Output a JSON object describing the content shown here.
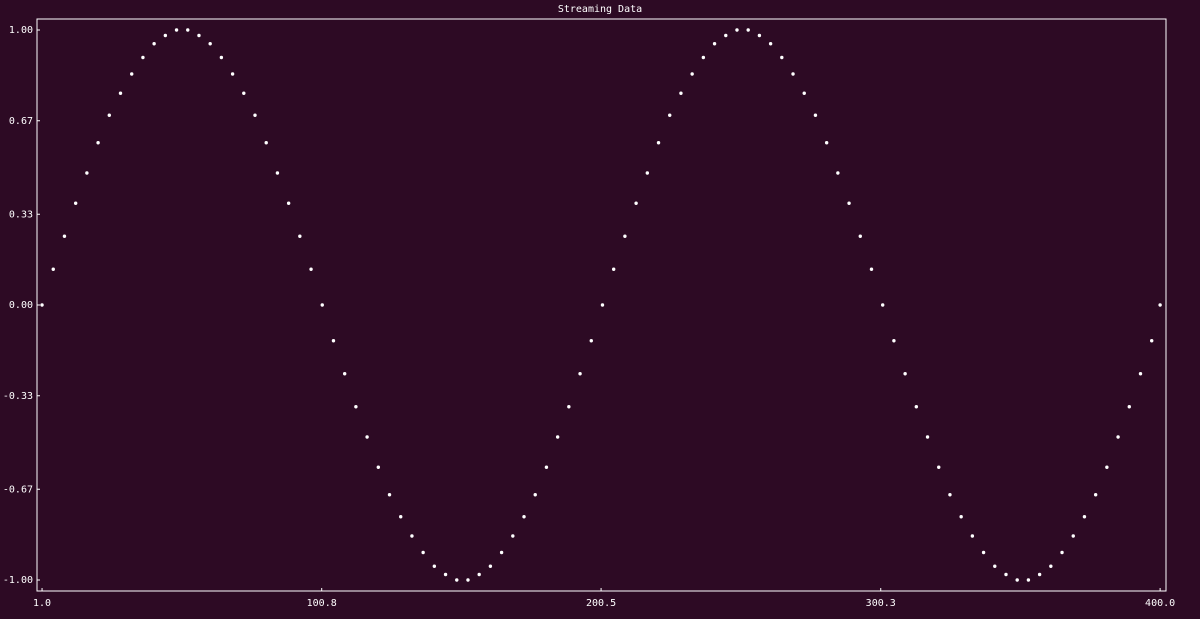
{
  "chart_data": {
    "type": "scatter",
    "title": "Streaming Data",
    "x": [
      1,
      5,
      9,
      13,
      17,
      21,
      25,
      29,
      33,
      37,
      41,
      45,
      49,
      53,
      57,
      61,
      65,
      69,
      73,
      77,
      81,
      85,
      89,
      93,
      97,
      101,
      105,
      109,
      113,
      117,
      121,
      125,
      129,
      133,
      137,
      141,
      145,
      149,
      153,
      157,
      161,
      165,
      169,
      173,
      177,
      181,
      185,
      189,
      193,
      197,
      201,
      205,
      209,
      213,
      217,
      221,
      225,
      229,
      233,
      237,
      241,
      245,
      249,
      253,
      257,
      261,
      265,
      269,
      273,
      277,
      281,
      285,
      289,
      293,
      297,
      301,
      305,
      309,
      313,
      317,
      321,
      325,
      329,
      333,
      337,
      341,
      345,
      349,
      353,
      357,
      361,
      365,
      369,
      373,
      377,
      381,
      385,
      389,
      393,
      397,
      400
    ],
    "values": [
      0,
      0.13,
      0.25,
      0.37,
      0.48,
      0.59,
      0.69,
      0.77,
      0.84,
      0.9,
      0.95,
      0.98,
      1,
      1,
      0.98,
      0.95,
      0.9,
      0.84,
      0.77,
      0.69,
      0.59,
      0.48,
      0.37,
      0.25,
      0.13,
      0,
      -0.13,
      -0.25,
      -0.37,
      -0.48,
      -0.59,
      -0.69,
      -0.77,
      -0.84,
      -0.9,
      -0.95,
      -0.98,
      -1,
      -1,
      -0.98,
      -0.95,
      -0.9,
      -0.84,
      -0.77,
      -0.69,
      -0.59,
      -0.48,
      -0.37,
      -0.25,
      -0.13,
      0,
      0.13,
      0.25,
      0.37,
      0.48,
      0.59,
      0.69,
      0.77,
      0.84,
      0.9,
      0.95,
      0.98,
      1,
      1,
      0.98,
      0.95,
      0.9,
      0.84,
      0.77,
      0.69,
      0.59,
      0.48,
      0.37,
      0.25,
      0.13,
      0,
      -0.13,
      -0.25,
      -0.37,
      -0.48,
      -0.59,
      -0.69,
      -0.77,
      -0.84,
      -0.9,
      -0.95,
      -0.98,
      -1,
      -1,
      -0.98,
      -0.95,
      -0.9,
      -0.84,
      -0.77,
      -0.69,
      -0.59,
      -0.48,
      -0.37,
      -0.25,
      -0.13,
      0
    ],
    "color": "#ffffff",
    "xlim": [
      -0.8,
      402.1
    ],
    "ylim": [
      -1.04,
      1.04
    ],
    "xticks": [
      {
        "value": 1,
        "label": "1.0"
      },
      100.8,
      200.5,
      300.3,
      {
        "value": 400,
        "label": "400.0"
      }
    ],
    "yticks": [
      {
        "value": 1,
        "label": "1.00"
      },
      {
        "value": 0.67,
        "label": "0.67"
      },
      {
        "value": 0.33,
        "label": "0.33"
      },
      {
        "value": 0,
        "label": "0.00"
      },
      {
        "value": -0.33,
        "label": "-0.33"
      },
      {
        "value": -0.67,
        "label": "-0.67"
      },
      {
        "value": -1,
        "label": "-1.00"
      }
    ],
    "grid": false
  }
}
